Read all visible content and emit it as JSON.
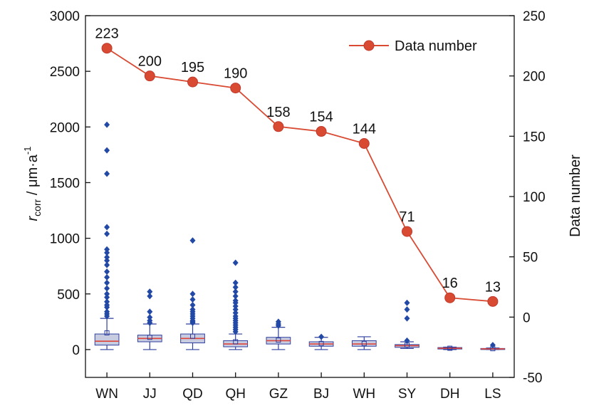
{
  "chart_data": {
    "type": "box+line",
    "categories": [
      "WN",
      "JJ",
      "QD",
      "QH",
      "GZ",
      "BJ",
      "WH",
      "SY",
      "DH",
      "LS"
    ],
    "left_axis": {
      "label_main": "r",
      "label_sub": "corr",
      "label_unit": " / μm·a",
      "label_sup": "-1",
      "ylim": [
        -250,
        3000
      ],
      "ticks": [
        0,
        500,
        1000,
        1500,
        2000,
        2500,
        3000
      ]
    },
    "right_axis": {
      "label": "Data number",
      "ylim": [
        -50,
        250
      ],
      "ticks": [
        -50,
        0,
        50,
        100,
        150,
        200,
        250
      ]
    },
    "box_series": {
      "boxes": [
        {
          "q1": 40,
          "median": 75,
          "q3": 140,
          "mean": 150,
          "whisker_low": 0,
          "whisker_high": 280,
          "outliers": [
            2020,
            1790,
            1580,
            1100,
            1040,
            900,
            870,
            830,
            800,
            760,
            700,
            650,
            600,
            550,
            500,
            470,
            430,
            400,
            380,
            340,
            320,
            300
          ]
        },
        {
          "q1": 70,
          "median": 100,
          "q3": 130,
          "mean": 110,
          "whisker_low": 0,
          "whisker_high": 230,
          "outliers": [
            520,
            480,
            340,
            290,
            260,
            240
          ]
        },
        {
          "q1": 60,
          "median": 100,
          "q3": 140,
          "mean": 120,
          "whisker_low": 0,
          "whisker_high": 230,
          "outliers": [
            980,
            500,
            450,
            400,
            360,
            340,
            320,
            300,
            280,
            260,
            250,
            240
          ]
        },
        {
          "q1": 25,
          "median": 50,
          "q3": 80,
          "mean": 70,
          "whisker_low": 0,
          "whisker_high": 140,
          "outliers": [
            780,
            600,
            560,
            520,
            480,
            440,
            420,
            390,
            360,
            330,
            300,
            280,
            260,
            240,
            220,
            200,
            180,
            160
          ]
        },
        {
          "q1": 50,
          "median": 80,
          "q3": 110,
          "mean": 85,
          "whisker_low": 0,
          "whisker_high": 200,
          "outliers": [
            250,
            230,
            215
          ]
        },
        {
          "q1": 30,
          "median": 50,
          "q3": 70,
          "mean": 55,
          "whisker_low": 0,
          "whisker_high": 110,
          "outliers": [
            115
          ]
        },
        {
          "q1": 30,
          "median": 50,
          "q3": 80,
          "mean": 55,
          "whisker_low": 0,
          "whisker_high": 115,
          "outliers": []
        },
        {
          "q1": 20,
          "median": 35,
          "q3": 45,
          "mean": 40,
          "whisker_low": 10,
          "whisker_high": 70,
          "outliers": [
            420,
            360,
            280,
            80
          ]
        },
        {
          "q1": 5,
          "median": 12,
          "q3": 18,
          "mean": 12,
          "whisker_low": 0,
          "whisker_high": 22,
          "outliers": []
        },
        {
          "q1": 2,
          "median": 6,
          "q3": 10,
          "mean": 8,
          "whisker_low": 0,
          "whisker_high": 14,
          "outliers": [
            40
          ]
        }
      ]
    },
    "line_series": {
      "name": "Data number",
      "values": [
        223,
        200,
        195,
        190,
        158,
        154,
        144,
        71,
        16,
        13
      ],
      "labels": [
        "223",
        "200",
        "195",
        "190",
        "158",
        "154",
        "144",
        "71",
        "16",
        "13"
      ]
    },
    "legend": {
      "placement": "top-right",
      "entries": [
        "Data number"
      ]
    },
    "grid": false
  },
  "colors": {
    "box_fill": "#c8cce0",
    "box_stroke": "#2f3f9e",
    "median": "#e0453a",
    "outlier": "#2349a6",
    "line": "#d94a33",
    "axis": "#111111"
  }
}
